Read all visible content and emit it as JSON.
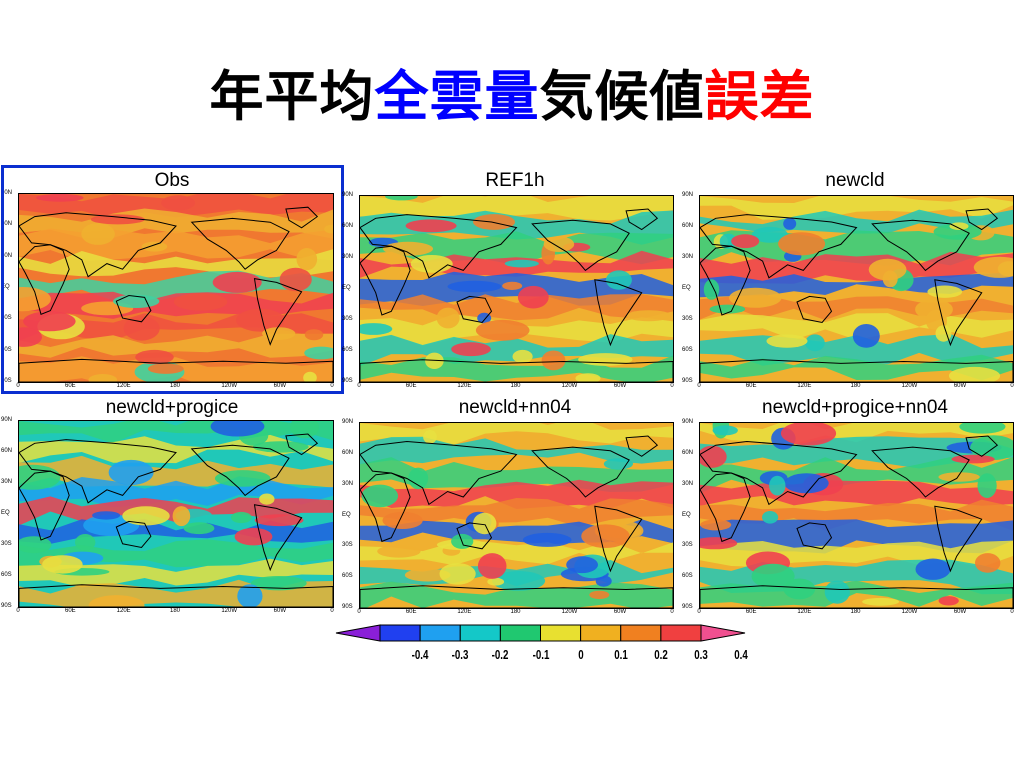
{
  "slide": {
    "title_parts": [
      {
        "text": "年平均",
        "color": "#000000"
      },
      {
        "text": "全雲量",
        "color": "#0000ff"
      },
      {
        "text": "気候値",
        "color": "#000000"
      },
      {
        "text": "誤差",
        "color": "#ff0000"
      }
    ]
  },
  "map_labels": {
    "latitudes": [
      "90N",
      "60N",
      "30N",
      "EQ",
      "30S",
      "60S",
      "90S"
    ],
    "longitudes": [
      "0",
      "60E",
      "120E",
      "180",
      "120W",
      "60W",
      "0"
    ]
  },
  "panels": [
    {
      "title": "Obs",
      "highlighted": true
    },
    {
      "title": "REF1h",
      "highlighted": false
    },
    {
      "title": "newcld",
      "highlighted": false
    },
    {
      "title": "newcld+progice",
      "highlighted": false
    },
    {
      "title": "newcld+nn04",
      "highlighted": false
    },
    {
      "title": "newcld+progice+nn04",
      "highlighted": false
    }
  ],
  "colorbar": {
    "levels": [
      "-0.4",
      "-0.3",
      "-0.2",
      "-0.1",
      "0",
      "0.1",
      "0.2",
      "0.3",
      "0.4"
    ],
    "colors": [
      "#8a1fd8",
      "#2040f0",
      "#1fa0f0",
      "#14c8c8",
      "#20c870",
      "#e8e030",
      "#f0b020",
      "#f08020",
      "#f04040",
      "#f05090"
    ]
  }
}
